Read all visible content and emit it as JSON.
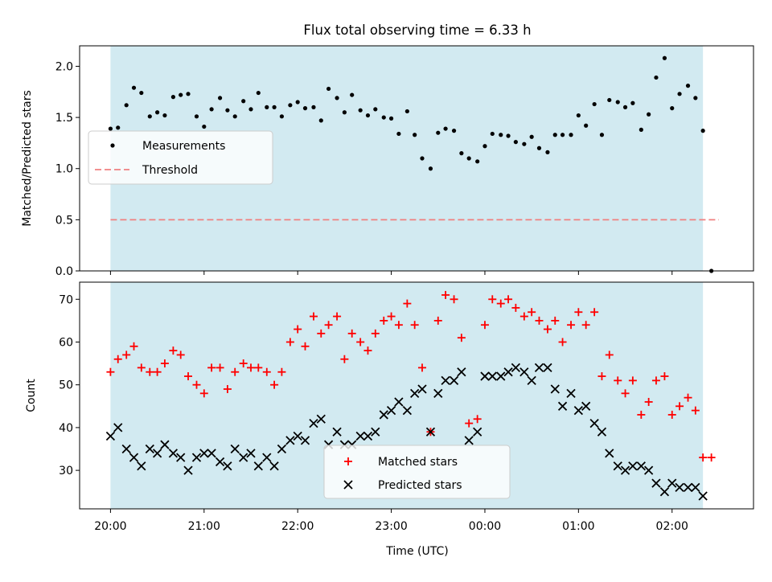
{
  "chart_data": {
    "type": "scatter",
    "title": "Flux total observing time = 6.33 h",
    "xlabel": "Time (UTC)",
    "x_unit": "hours since 20:00 UTC",
    "x_ticks": [
      {
        "value": 0,
        "label": "20:00"
      },
      {
        "value": 1,
        "label": "21:00"
      },
      {
        "value": 2,
        "label": "22:00"
      },
      {
        "value": 3,
        "label": "23:00"
      },
      {
        "value": 4,
        "label": "00:00"
      },
      {
        "value": 5,
        "label": "01:00"
      },
      {
        "value": 6,
        "label": "02:00"
      }
    ],
    "xlim": [
      -0.33,
      6.87
    ],
    "shaded_span": {
      "x_start": 0,
      "x_end": 6.33,
      "color": "#add8e6"
    },
    "panels": [
      {
        "ylabel": "Matched/Predicted stars",
        "ylim": [
          0,
          2.2
        ],
        "y_ticks": [
          {
            "value": 0.0,
            "label": "0.0"
          },
          {
            "value": 0.5,
            "label": "0.5"
          },
          {
            "value": 1.0,
            "label": "1.0"
          },
          {
            "value": 1.5,
            "label": "1.5"
          },
          {
            "value": 2.0,
            "label": "2.0"
          }
        ],
        "threshold": {
          "value": 0.5,
          "x_start": 0,
          "x_end": 6.5,
          "color": "#f08080"
        },
        "legend": {
          "position": "center-left",
          "entries": [
            {
              "label": "Measurements",
              "marker": "dot",
              "color": "#000000"
            },
            {
              "label": "Threshold",
              "marker": "dashed-line",
              "color": "#f08080"
            }
          ]
        },
        "series": [
          {
            "name": "Measurements",
            "marker": "dot",
            "color": "#000000",
            "x": [
              0.0,
              0.08,
              0.17,
              0.25,
              0.33,
              0.42,
              0.5,
              0.58,
              0.67,
              0.75,
              0.83,
              0.92,
              1.0,
              1.08,
              1.17,
              1.25,
              1.33,
              1.42,
              1.5,
              1.58,
              1.67,
              1.75,
              1.83,
              1.92,
              2.0,
              2.08,
              2.17,
              2.25,
              2.33,
              2.42,
              2.5,
              2.58,
              2.67,
              2.75,
              2.83,
              2.92,
              3.0,
              3.08,
              3.17,
              3.25,
              3.33,
              3.42,
              3.5,
              3.58,
              3.67,
              3.75,
              3.83,
              3.92,
              4.0,
              4.08,
              4.17,
              4.25,
              4.33,
              4.42,
              4.5,
              4.58,
              4.67,
              4.75,
              4.83,
              4.92,
              5.0,
              5.08,
              5.17,
              5.25,
              5.33,
              5.42,
              5.5,
              5.58,
              5.67,
              5.75,
              5.83,
              5.92,
              6.0,
              6.08,
              6.17,
              6.25,
              6.33,
              6.42
            ],
            "y": [
              1.39,
              1.4,
              1.62,
              1.79,
              1.74,
              1.51,
              1.55,
              1.52,
              1.7,
              1.72,
              1.73,
              1.51,
              1.41,
              1.58,
              1.69,
              1.57,
              1.51,
              1.66,
              1.58,
              1.74,
              1.6,
              1.6,
              1.51,
              1.62,
              1.65,
              1.59,
              1.6,
              1.47,
              1.78,
              1.69,
              1.55,
              1.72,
              1.57,
              1.52,
              1.58,
              1.5,
              1.49,
              1.34,
              1.56,
              1.33,
              1.1,
              1.0,
              1.35,
              1.39,
              1.37,
              1.15,
              1.1,
              1.07,
              1.22,
              1.34,
              1.33,
              1.32,
              1.26,
              1.24,
              1.31,
              1.2,
              1.16,
              1.33,
              1.33,
              1.33,
              1.52,
              1.42,
              1.63,
              1.33,
              1.67,
              1.65,
              1.6,
              1.64,
              1.38,
              1.53,
              1.89,
              2.08,
              1.59,
              1.73,
              1.81,
              1.69,
              1.37,
              0.0
            ]
          }
        ]
      },
      {
        "ylabel": "Count",
        "ylim": [
          21,
          74
        ],
        "y_ticks": [
          {
            "value": 30,
            "label": "30"
          },
          {
            "value": 40,
            "label": "40"
          },
          {
            "value": 50,
            "label": "50"
          },
          {
            "value": 60,
            "label": "60"
          },
          {
            "value": 70,
            "label": "70"
          }
        ],
        "legend": {
          "position": "lower-center",
          "entries": [
            {
              "label": "Matched stars",
              "marker": "plus",
              "color": "#ff0000"
            },
            {
              "label": "Predicted stars",
              "marker": "x",
              "color": "#000000"
            }
          ]
        },
        "series": [
          {
            "name": "Matched stars",
            "marker": "plus",
            "color": "#ff0000",
            "x": [
              0.0,
              0.08,
              0.17,
              0.25,
              0.33,
              0.42,
              0.5,
              0.58,
              0.67,
              0.75,
              0.83,
              0.92,
              1.0,
              1.08,
              1.17,
              1.25,
              1.33,
              1.42,
              1.5,
              1.58,
              1.67,
              1.75,
              1.83,
              1.92,
              2.0,
              2.08,
              2.17,
              2.25,
              2.33,
              2.42,
              2.5,
              2.58,
              2.67,
              2.75,
              2.83,
              2.92,
              3.0,
              3.08,
              3.17,
              3.25,
              3.33,
              3.42,
              3.5,
              3.58,
              3.67,
              3.75,
              3.83,
              3.92,
              4.0,
              4.08,
              4.17,
              4.25,
              4.33,
              4.42,
              4.5,
              4.58,
              4.67,
              4.75,
              4.83,
              4.92,
              5.0,
              5.08,
              5.17,
              5.25,
              5.33,
              5.42,
              5.5,
              5.58,
              5.67,
              5.75,
              5.83,
              5.92,
              6.0,
              6.08,
              6.17,
              6.25,
              6.33,
              6.42
            ],
            "y": [
              53,
              56,
              57,
              59,
              54,
              53,
              53,
              55,
              58,
              57,
              52,
              50,
              48,
              54,
              54,
              49,
              53,
              55,
              54,
              54,
              53,
              50,
              53,
              60,
              63,
              59,
              66,
              62,
              64,
              66,
              56,
              62,
              60,
              58,
              62,
              65,
              66,
              64,
              69,
              64,
              54,
              39,
              65,
              71,
              70,
              61,
              41,
              42,
              64,
              70,
              69,
              70,
              68,
              66,
              67,
              65,
              63,
              65,
              60,
              64,
              67,
              64,
              67,
              52,
              57,
              51,
              48,
              51,
              43,
              46,
              51,
              52,
              43,
              45,
              47,
              44,
              33,
              33
            ]
          },
          {
            "name": "Predicted stars",
            "marker": "x",
            "color": "#000000",
            "x": [
              0.0,
              0.08,
              0.17,
              0.25,
              0.33,
              0.42,
              0.5,
              0.58,
              0.67,
              0.75,
              0.83,
              0.92,
              1.0,
              1.08,
              1.17,
              1.25,
              1.33,
              1.42,
              1.5,
              1.58,
              1.67,
              1.75,
              1.83,
              1.92,
              2.0,
              2.08,
              2.17,
              2.25,
              2.33,
              2.42,
              2.5,
              2.58,
              2.67,
              2.75,
              2.83,
              2.92,
              3.0,
              3.08,
              3.17,
              3.25,
              3.33,
              3.42,
              3.5,
              3.58,
              3.67,
              3.75,
              3.83,
              3.92,
              4.0,
              4.08,
              4.17,
              4.25,
              4.33,
              4.42,
              4.5,
              4.58,
              4.67,
              4.75,
              4.83,
              4.92,
              5.0,
              5.08,
              5.17,
              5.25,
              5.33,
              5.42,
              5.5,
              5.58,
              5.67,
              5.75,
              5.83,
              5.92,
              6.0,
              6.08,
              6.17,
              6.25,
              6.33
            ],
            "y": [
              38,
              40,
              35,
              33,
              31,
              35,
              34,
              36,
              34,
              33,
              30,
              33,
              34,
              34,
              32,
              31,
              35,
              33,
              34,
              31,
              33,
              31,
              35,
              37,
              38,
              37,
              41,
              42,
              36,
              39,
              36,
              36,
              38,
              38,
              39,
              43,
              44,
              46,
              44,
              48,
              49,
              39,
              48,
              51,
              51,
              53,
              37,
              39,
              52,
              52,
              52,
              53,
              54,
              53,
              51,
              54,
              54,
              49,
              45,
              48,
              44,
              45,
              41,
              39,
              34,
              31,
              30,
              31,
              31,
              30,
              27,
              25,
              27,
              26,
              26,
              26,
              24
            ]
          }
        ]
      }
    ]
  }
}
